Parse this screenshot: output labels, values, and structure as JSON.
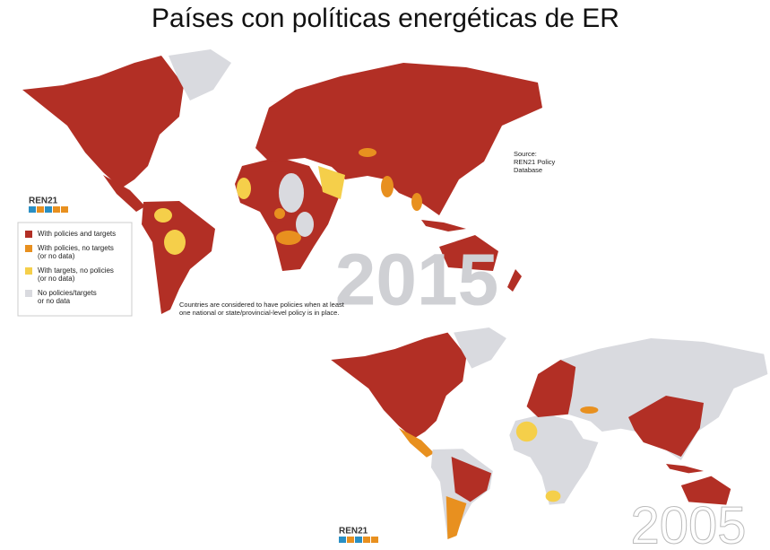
{
  "title": "Países con políticas energéticas de ER",
  "map_2015": {
    "year": "2015",
    "logo": "REN21",
    "source": [
      "Source:",
      "REN21 Policy",
      "Database"
    ],
    "legend": [
      {
        "lines": [
          "With policies and targets"
        ],
        "color": "#b22f25"
      },
      {
        "lines": [
          "With policies, no targets",
          "(or no data)"
        ],
        "color": "#e8901f"
      },
      {
        "lines": [
          "With targets, no policies",
          "(or no data)"
        ],
        "color": "#f5cf4a"
      },
      {
        "lines": [
          "No policies/targets",
          "or no data"
        ],
        "color": "#d9dadf"
      }
    ],
    "note": [
      "Countries are considered to have policies when at least",
      "one national or state/provincial-level policy is in place."
    ]
  },
  "map_2005": {
    "year": "2005",
    "logo": "REN21"
  }
}
